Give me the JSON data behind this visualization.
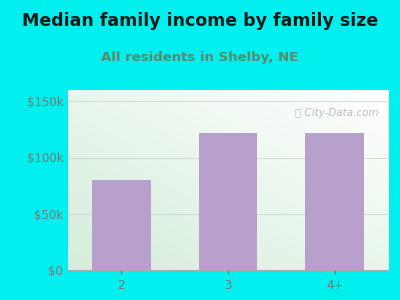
{
  "title": "Median family income by family size",
  "subtitle": "All residents in Shelby, NE",
  "categories": [
    "2",
    "3",
    "4+"
  ],
  "values": [
    80000,
    122000,
    122000
  ],
  "bar_color": "#b8a0cc",
  "background_color": "#00EFEF",
  "yticks": [
    0,
    50000,
    100000,
    150000
  ],
  "ytick_labels": [
    "$0",
    "$50k",
    "$100k",
    "$150k"
  ],
  "ylim": [
    0,
    160000
  ],
  "title_color": "#1a1a1a",
  "subtitle_color": "#5a8a6a",
  "tick_color": "#777777",
  "watermark": "ⓘ City-Data.com",
  "title_fontsize": 12.5,
  "subtitle_fontsize": 9.5,
  "tick_fontsize": 8.5
}
